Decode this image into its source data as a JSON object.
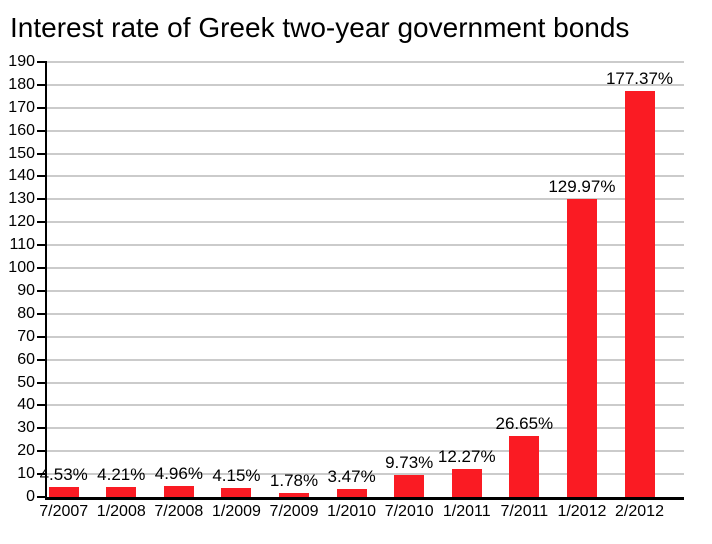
{
  "chart_data": {
    "type": "bar",
    "title": "Interest rate of Greek two-year government bonds",
    "categories": [
      "7/2007",
      "1/2008",
      "7/2008",
      "1/2009",
      "7/2009",
      "1/2010",
      "7/2010",
      "1/2011",
      "7/2011",
      "1/2012",
      "2/2012"
    ],
    "values": [
      4.53,
      4.21,
      4.96,
      4.15,
      1.78,
      3.47,
      9.73,
      12.27,
      26.65,
      129.97,
      177.37
    ],
    "value_labels": [
      "4.53%",
      "4.21%",
      "4.96%",
      "4.15%",
      "1.78%",
      "3.47%",
      "9.73%",
      "12.27%",
      "26.65%",
      "129.97%",
      "177.37%"
    ],
    "xlabel": "",
    "ylabel": "",
    "ylim": [
      0,
      190
    ],
    "ytick_step": 10,
    "ytick_labels": [
      "0",
      "10",
      "20",
      "30",
      "40",
      "50",
      "60",
      "70",
      "80",
      "90",
      "100",
      "110",
      "120",
      "130",
      "140",
      "150",
      "160",
      "170",
      "180",
      "190"
    ],
    "grid": true,
    "legend_position": "none",
    "bar_color": "#fa1b23",
    "gridline_color": "#cbcbcb",
    "axis_color": "#000000",
    "text_color": "#000000",
    "background_color": "#ffffff"
  }
}
